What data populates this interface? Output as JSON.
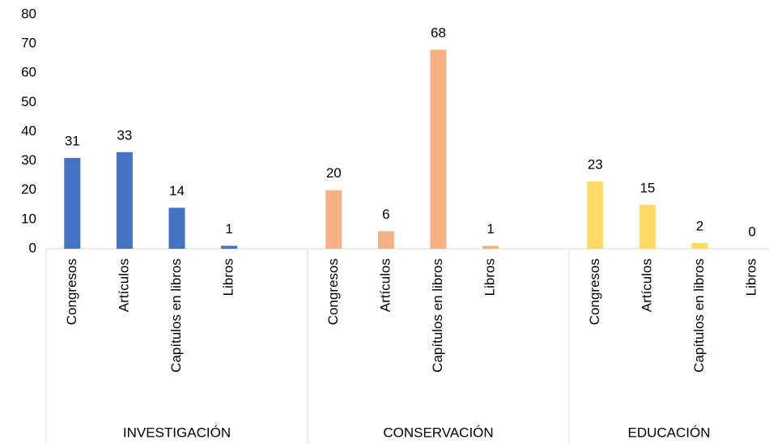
{
  "chart_data": {
    "type": "bar",
    "groups": [
      {
        "name": "INVESTIGACIÓN",
        "color": "#4472c4",
        "categories": [
          "Congresos",
          "Artículos",
          "Capítulos en libros",
          "Libros"
        ],
        "values": [
          31,
          33,
          14,
          1
        ]
      },
      {
        "name": "CONSERVACIÓN",
        "color": "#f4b183",
        "categories": [
          "Congresos",
          "Artículos",
          "Capítulos en libros",
          "Libros"
        ],
        "values": [
          20,
          6,
          68,
          1
        ]
      },
      {
        "name": "EDUCACIÓN",
        "color": "#ffd966",
        "categories": [
          "Congresos",
          "Artículos",
          "Capítulos en libros",
          "Libros"
        ],
        "values": [
          23,
          15,
          2,
          0
        ]
      }
    ],
    "ylim": [
      0,
      80
    ],
    "yticks": [
      0,
      10,
      20,
      30,
      40,
      50,
      60,
      70,
      80
    ],
    "grid": false
  }
}
